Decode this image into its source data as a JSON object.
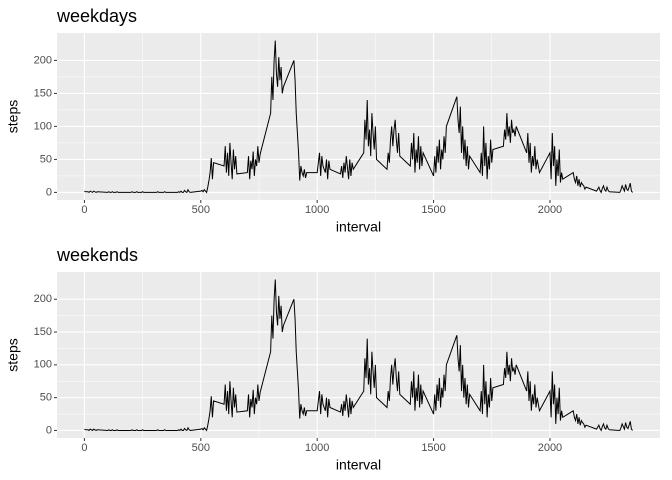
{
  "chart_data": [
    {
      "type": "line",
      "title": "weekdays",
      "x_label": "interval",
      "y_label": "steps",
      "color": "#000000",
      "xlim": [
        -117.75,
        2472.75
      ],
      "xticks": [
        0,
        500,
        1000,
        1500,
        2000
      ],
      "ylim": [
        -11.5,
        241.5
      ],
      "yticks": [
        0,
        50,
        100,
        150,
        200
      ],
      "grid": true,
      "x": [
        0,
        5,
        10,
        15,
        20,
        25,
        30,
        35,
        40,
        45,
        50,
        55,
        100,
        105,
        110,
        115,
        120,
        125,
        130,
        135,
        140,
        145,
        150,
        155,
        200,
        205,
        210,
        215,
        220,
        225,
        230,
        235,
        240,
        245,
        250,
        255,
        300,
        305,
        310,
        315,
        320,
        325,
        330,
        335,
        340,
        345,
        350,
        355,
        400,
        405,
        410,
        415,
        420,
        425,
        430,
        435,
        440,
        445,
        450,
        455,
        500,
        505,
        510,
        515,
        520,
        525,
        530,
        535,
        540,
        545,
        550,
        555,
        600,
        605,
        610,
        615,
        620,
        625,
        630,
        635,
        640,
        645,
        650,
        655,
        700,
        705,
        710,
        715,
        720,
        725,
        730,
        735,
        740,
        745,
        750,
        755,
        800,
        805,
        810,
        815,
        820,
        825,
        830,
        835,
        840,
        845,
        850,
        855,
        900,
        905,
        910,
        915,
        920,
        925,
        930,
        935,
        940,
        945,
        950,
        955,
        1000,
        1005,
        1010,
        1015,
        1020,
        1025,
        1030,
        1035,
        1040,
        1045,
        1050,
        1055,
        1100,
        1105,
        1110,
        1115,
        1120,
        1125,
        1130,
        1135,
        1140,
        1145,
        1150,
        1155,
        1200,
        1205,
        1210,
        1215,
        1220,
        1225,
        1230,
        1235,
        1240,
        1245,
        1250,
        1255,
        1300,
        1305,
        1310,
        1315,
        1320,
        1325,
        1330,
        1335,
        1340,
        1345,
        1350,
        1355,
        1400,
        1405,
        1410,
        1415,
        1420,
        1425,
        1430,
        1435,
        1440,
        1445,
        1450,
        1455,
        1500,
        1505,
        1510,
        1515,
        1520,
        1525,
        1530,
        1535,
        1540,
        1545,
        1550,
        1555,
        1600,
        1605,
        1610,
        1615,
        1620,
        1625,
        1630,
        1635,
        1640,
        1645,
        1650,
        1655,
        1700,
        1705,
        1710,
        1715,
        1720,
        1725,
        1730,
        1735,
        1740,
        1745,
        1750,
        1755,
        1800,
        1805,
        1810,
        1815,
        1820,
        1825,
        1830,
        1835,
        1840,
        1845,
        1850,
        1855,
        1900,
        1905,
        1910,
        1915,
        1920,
        1925,
        1930,
        1935,
        1940,
        1945,
        1950,
        1955,
        2000,
        2005,
        2010,
        2015,
        2020,
        2025,
        2030,
        2035,
        2040,
        2045,
        2050,
        2055,
        2100,
        2105,
        2110,
        2115,
        2120,
        2125,
        2130,
        2135,
        2140,
        2145,
        2150,
        2155,
        2200,
        2205,
        2210,
        2215,
        2220,
        2225,
        2230,
        2235,
        2240,
        2245,
        2250,
        2255,
        2300,
        2305,
        2310,
        2315,
        2320,
        2325,
        2330,
        2335,
        2340,
        2345,
        2350,
        2355
      ],
      "values": [
        2,
        1,
        1,
        1,
        0,
        2,
        1,
        0,
        2,
        1,
        0,
        1,
        0,
        1,
        0,
        0,
        1,
        0,
        0,
        0,
        1,
        0,
        0,
        0,
        0,
        1,
        0,
        0,
        0,
        1,
        0,
        0,
        0,
        0,
        1,
        0,
        0,
        0,
        0,
        1,
        0,
        0,
        0,
        0,
        0,
        1,
        0,
        0,
        0,
        1,
        0,
        2,
        0,
        0,
        3,
        1,
        0,
        4,
        1,
        0,
        2,
        3,
        1,
        4,
        2,
        0,
        8,
        18,
        30,
        52,
        20,
        45,
        40,
        70,
        30,
        60,
        25,
        75,
        45,
        20,
        65,
        35,
        55,
        28,
        30,
        55,
        20,
        48,
        35,
        62,
        25,
        50,
        40,
        70,
        45,
        58,
        120,
        175,
        140,
        200,
        230,
        180,
        160,
        205,
        170,
        190,
        150,
        160,
        200,
        170,
        120,
        90,
        60,
        18,
        40,
        30,
        25,
        35,
        22,
        30,
        30,
        45,
        60,
        25,
        55,
        40,
        35,
        30,
        50,
        20,
        48,
        35,
        28,
        40,
        22,
        45,
        30,
        55,
        38,
        20,
        50,
        25,
        45,
        35,
        60,
        110,
        80,
        140,
        70,
        95,
        55,
        120,
        90,
        65,
        100,
        50,
        35,
        60,
        45,
        80,
        100,
        70,
        95,
        110,
        80,
        60,
        90,
        55,
        40,
        75,
        50,
        90,
        30,
        65,
        45,
        85,
        35,
        70,
        40,
        60,
        25,
        55,
        30,
        70,
        45,
        80,
        35,
        65,
        50,
        85,
        60,
        100,
        145,
        110,
        90,
        130,
        60,
        100,
        50,
        80,
        40,
        70,
        35,
        55,
        30,
        60,
        25,
        100,
        40,
        75,
        20,
        55,
        35,
        80,
        45,
        65,
        70,
        95,
        80,
        120,
        85,
        100,
        75,
        110,
        90,
        95,
        85,
        100,
        60,
        90,
        45,
        75,
        30,
        55,
        40,
        70,
        35,
        50,
        40,
        30,
        60,
        20,
        90,
        40,
        70,
        10,
        50,
        25,
        65,
        15,
        30,
        20,
        30,
        20,
        15,
        25,
        10,
        20,
        8,
        15,
        12,
        10,
        5,
        8,
        2,
        5,
        8,
        3,
        0,
        6,
        10,
        4,
        2,
        8,
        3,
        1,
        0,
        4,
        10,
        6,
        2,
        12,
        5,
        3,
        8,
        14,
        2,
        0
      ]
    },
    {
      "type": "line",
      "title": "weekends",
      "x_label": "interval",
      "y_label": "steps",
      "color": "#000000",
      "xlim": [
        -117.75,
        2472.75
      ],
      "xticks": [
        0,
        500,
        1000,
        1500,
        2000
      ],
      "ylim": [
        -11.5,
        241.5
      ],
      "yticks": [
        0,
        50,
        100,
        150,
        200
      ],
      "grid": true,
      "x": [
        0,
        5,
        10,
        15,
        20,
        25,
        30,
        35,
        40,
        45,
        50,
        55,
        100,
        105,
        110,
        115,
        120,
        125,
        130,
        135,
        140,
        145,
        150,
        155,
        200,
        205,
        210,
        215,
        220,
        225,
        230,
        235,
        240,
        245,
        250,
        255,
        300,
        305,
        310,
        315,
        320,
        325,
        330,
        335,
        340,
        345,
        350,
        355,
        400,
        405,
        410,
        415,
        420,
        425,
        430,
        435,
        440,
        445,
        450,
        455,
        500,
        505,
        510,
        515,
        520,
        525,
        530,
        535,
        540,
        545,
        550,
        555,
        600,
        605,
        610,
        615,
        620,
        625,
        630,
        635,
        640,
        645,
        650,
        655,
        700,
        705,
        710,
        715,
        720,
        725,
        730,
        735,
        740,
        745,
        750,
        755,
        800,
        805,
        810,
        815,
        820,
        825,
        830,
        835,
        840,
        845,
        850,
        855,
        900,
        905,
        910,
        915,
        920,
        925,
        930,
        935,
        940,
        945,
        950,
        955,
        1000,
        1005,
        1010,
        1015,
        1020,
        1025,
        1030,
        1035,
        1040,
        1045,
        1050,
        1055,
        1100,
        1105,
        1110,
        1115,
        1120,
        1125,
        1130,
        1135,
        1140,
        1145,
        1150,
        1155,
        1200,
        1205,
        1210,
        1215,
        1220,
        1225,
        1230,
        1235,
        1240,
        1245,
        1250,
        1255,
        1300,
        1305,
        1310,
        1315,
        1320,
        1325,
        1330,
        1335,
        1340,
        1345,
        1350,
        1355,
        1400,
        1405,
        1410,
        1415,
        1420,
        1425,
        1430,
        1435,
        1440,
        1445,
        1450,
        1455,
        1500,
        1505,
        1510,
        1515,
        1520,
        1525,
        1530,
        1535,
        1540,
        1545,
        1550,
        1555,
        1600,
        1605,
        1610,
        1615,
        1620,
        1625,
        1630,
        1635,
        1640,
        1645,
        1650,
        1655,
        1700,
        1705,
        1710,
        1715,
        1720,
        1725,
        1730,
        1735,
        1740,
        1745,
        1750,
        1755,
        1800,
        1805,
        1810,
        1815,
        1820,
        1825,
        1830,
        1835,
        1840,
        1845,
        1850,
        1855,
        1900,
        1905,
        1910,
        1915,
        1920,
        1925,
        1930,
        1935,
        1940,
        1945,
        1950,
        1955,
        2000,
        2005,
        2010,
        2015,
        2020,
        2025,
        2030,
        2035,
        2040,
        2045,
        2050,
        2055,
        2100,
        2105,
        2110,
        2115,
        2120,
        2125,
        2130,
        2135,
        2140,
        2145,
        2150,
        2155,
        2200,
        2205,
        2210,
        2215,
        2220,
        2225,
        2230,
        2235,
        2240,
        2245,
        2250,
        2255,
        2300,
        2305,
        2310,
        2315,
        2320,
        2325,
        2330,
        2335,
        2340,
        2345,
        2350,
        2355
      ],
      "values": [
        2,
        1,
        1,
        1,
        0,
        2,
        1,
        0,
        2,
        1,
        0,
        1,
        0,
        1,
        0,
        0,
        1,
        0,
        0,
        0,
        1,
        0,
        0,
        0,
        0,
        1,
        0,
        0,
        0,
        1,
        0,
        0,
        0,
        0,
        1,
        0,
        0,
        0,
        0,
        1,
        0,
        0,
        0,
        0,
        0,
        1,
        0,
        0,
        0,
        1,
        0,
        2,
        0,
        0,
        3,
        1,
        0,
        4,
        1,
        0,
        2,
        3,
        1,
        4,
        2,
        0,
        8,
        18,
        30,
        52,
        20,
        45,
        40,
        70,
        30,
        60,
        25,
        75,
        45,
        20,
        65,
        35,
        55,
        28,
        30,
        55,
        20,
        48,
        35,
        62,
        25,
        50,
        40,
        70,
        45,
        58,
        120,
        175,
        140,
        200,
        230,
        180,
        160,
        205,
        170,
        190,
        150,
        160,
        200,
        170,
        120,
        90,
        60,
        18,
        40,
        30,
        25,
        35,
        22,
        30,
        30,
        45,
        60,
        25,
        55,
        40,
        35,
        30,
        50,
        20,
        48,
        35,
        28,
        40,
        22,
        45,
        30,
        55,
        38,
        20,
        50,
        25,
        45,
        35,
        60,
        110,
        80,
        140,
        70,
        95,
        55,
        120,
        90,
        65,
        100,
        50,
        35,
        60,
        45,
        80,
        100,
        70,
        95,
        110,
        80,
        60,
        90,
        55,
        40,
        75,
        50,
        90,
        30,
        65,
        45,
        85,
        35,
        70,
        40,
        60,
        25,
        55,
        30,
        70,
        45,
        80,
        35,
        65,
        50,
        85,
        60,
        100,
        145,
        110,
        90,
        130,
        60,
        100,
        50,
        80,
        40,
        70,
        35,
        55,
        30,
        60,
        25,
        100,
        40,
        75,
        20,
        55,
        35,
        80,
        45,
        65,
        70,
        95,
        80,
        120,
        85,
        100,
        75,
        110,
        90,
        95,
        85,
        100,
        60,
        90,
        45,
        75,
        30,
        55,
        40,
        70,
        35,
        50,
        40,
        30,
        60,
        20,
        90,
        40,
        70,
        10,
        50,
        25,
        65,
        15,
        30,
        20,
        30,
        20,
        15,
        25,
        10,
        20,
        8,
        15,
        12,
        10,
        5,
        8,
        2,
        5,
        8,
        3,
        0,
        6,
        10,
        4,
        2,
        8,
        3,
        1,
        0,
        4,
        10,
        6,
        2,
        12,
        5,
        3,
        8,
        14,
        2,
        0
      ]
    }
  ]
}
